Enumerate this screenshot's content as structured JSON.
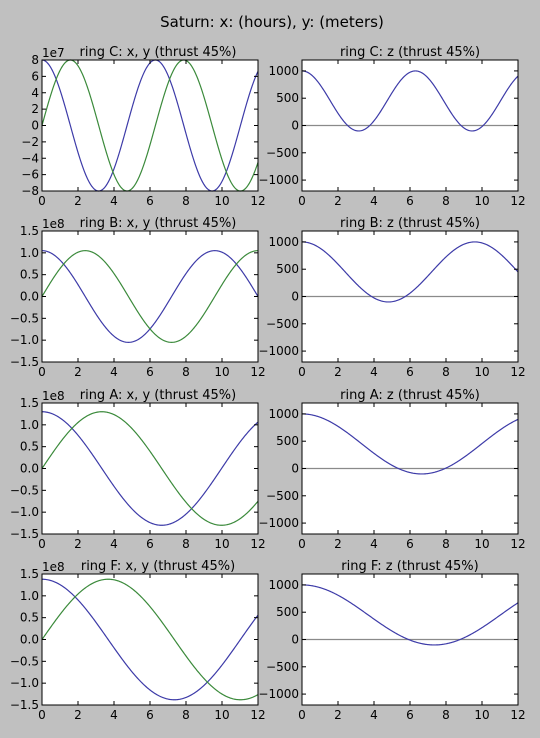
{
  "figure": {
    "title": "Saturn: x: (hours), y: (meters)"
  },
  "colors": {
    "x_series": "#3d3ba8",
    "y_series": "#3b8a3b",
    "zero_line": "#8a8a8a",
    "background": "#c0c0c0"
  },
  "chart_data": [
    {
      "type": "line",
      "title": "ring C: x, y (thrust 45%)",
      "xlim": [
        0,
        12
      ],
      "ylim": [
        -8,
        8
      ],
      "offset_label": "1e7",
      "x_ticks": [
        "0",
        "2",
        "4",
        "6",
        "8",
        "10",
        "12"
      ],
      "y_ticks": [
        "8",
        "6",
        "4",
        "2",
        "0",
        "−2",
        "−4",
        "−6",
        "−8"
      ],
      "y_tick_values": [
        8,
        6,
        4,
        2,
        0,
        -2,
        -4,
        -6,
        -8
      ],
      "series": [
        {
          "kind": "cos",
          "amplitude": 8.0,
          "period_hours": 6.3,
          "color": "#3d3ba8"
        },
        {
          "kind": "sin",
          "amplitude": 8.0,
          "period_hours": 6.3,
          "color": "#3b8a3b"
        }
      ]
    },
    {
      "type": "line",
      "title": "ring C: z (thrust 45%)",
      "xlim": [
        0,
        12
      ],
      "ylim": [
        -1200,
        1200
      ],
      "offset_label": "",
      "x_ticks": [
        "0",
        "2",
        "4",
        "6",
        "8",
        "10",
        "12"
      ],
      "y_ticks": [
        "1000",
        "500",
        "0",
        "−500",
        "−1000"
      ],
      "y_tick_values": [
        1000,
        500,
        0,
        -500,
        -1000
      ],
      "zero_line": true,
      "series": [
        {
          "kind": "zcurve",
          "base": 450,
          "amplitude": 550,
          "period_hours": 6.3,
          "color": "#3d3ba8"
        }
      ]
    },
    {
      "type": "line",
      "title": "ring B: x, y (thrust 45%)",
      "xlim": [
        0,
        12
      ],
      "ylim": [
        -1.5,
        1.5
      ],
      "offset_label": "1e8",
      "x_ticks": [
        "0",
        "2",
        "4",
        "6",
        "8",
        "10",
        "12"
      ],
      "y_ticks": [
        "1.5",
        "1.0",
        "0.5",
        "0.0",
        "−0.5",
        "−1.0",
        "−1.5"
      ],
      "y_tick_values": [
        1.5,
        1.0,
        0.5,
        0.0,
        -0.5,
        -1.0,
        -1.5
      ],
      "series": [
        {
          "kind": "cos",
          "amplitude": 1.05,
          "period_hours": 9.6,
          "color": "#3d3ba8"
        },
        {
          "kind": "sin",
          "amplitude": 1.05,
          "period_hours": 9.6,
          "color": "#3b8a3b"
        }
      ]
    },
    {
      "type": "line",
      "title": "ring B: z (thrust 45%)",
      "xlim": [
        0,
        12
      ],
      "ylim": [
        -1200,
        1200
      ],
      "offset_label": "",
      "x_ticks": [
        "0",
        "2",
        "4",
        "6",
        "8",
        "10",
        "12"
      ],
      "y_ticks": [
        "1000",
        "500",
        "0",
        "−500",
        "−1000"
      ],
      "y_tick_values": [
        1000,
        500,
        0,
        -500,
        -1000
      ],
      "zero_line": true,
      "series": [
        {
          "kind": "zcurve",
          "base": 450,
          "amplitude": 550,
          "period_hours": 9.6,
          "color": "#3d3ba8"
        }
      ]
    },
    {
      "type": "line",
      "title": "ring A: x, y (thrust 45%)",
      "xlim": [
        0,
        12
      ],
      "ylim": [
        -1.5,
        1.5
      ],
      "offset_label": "1e8",
      "x_ticks": [
        "0",
        "2",
        "4",
        "6",
        "8",
        "10",
        "12"
      ],
      "y_ticks": [
        "1.5",
        "1.0",
        "0.5",
        "0.0",
        "−0.5",
        "−1.0",
        "−1.5"
      ],
      "y_tick_values": [
        1.5,
        1.0,
        0.5,
        0.0,
        -0.5,
        -1.0,
        -1.5
      ],
      "series": [
        {
          "kind": "cos",
          "amplitude": 1.3,
          "period_hours": 13.3,
          "color": "#3d3ba8"
        },
        {
          "kind": "sin",
          "amplitude": 1.3,
          "period_hours": 13.3,
          "color": "#3b8a3b"
        }
      ]
    },
    {
      "type": "line",
      "title": "ring A: z (thrust 45%)",
      "xlim": [
        0,
        12
      ],
      "ylim": [
        -1200,
        1200
      ],
      "offset_label": "",
      "x_ticks": [
        "0",
        "2",
        "4",
        "6",
        "8",
        "10",
        "12"
      ],
      "y_ticks": [
        "1000",
        "500",
        "0",
        "−500",
        "−1000"
      ],
      "y_tick_values": [
        1000,
        500,
        0,
        -500,
        -1000
      ],
      "zero_line": true,
      "series": [
        {
          "kind": "zcurve",
          "base": 450,
          "amplitude": 550,
          "period_hours": 13.3,
          "color": "#3d3ba8"
        }
      ]
    },
    {
      "type": "line",
      "title": "ring F: x, y (thrust 45%)",
      "xlim": [
        0,
        12
      ],
      "ylim": [
        -1.5,
        1.5
      ],
      "offset_label": "1e8",
      "x_ticks": [
        "0",
        "2",
        "4",
        "6",
        "8",
        "10",
        "12"
      ],
      "y_ticks": [
        "1.5",
        "1.0",
        "0.5",
        "0.0",
        "−0.5",
        "−1.0",
        "−1.5"
      ],
      "y_tick_values": [
        1.5,
        1.0,
        0.5,
        0.0,
        -0.5,
        -1.0,
        -1.5
      ],
      "series": [
        {
          "kind": "cos",
          "amplitude": 1.38,
          "period_hours": 14.7,
          "color": "#3d3ba8"
        },
        {
          "kind": "sin",
          "amplitude": 1.38,
          "period_hours": 14.7,
          "color": "#3b8a3b"
        }
      ]
    },
    {
      "type": "line",
      "title": "ring F: z (thrust 45%)",
      "xlim": [
        0,
        12
      ],
      "ylim": [
        -1200,
        1200
      ],
      "offset_label": "",
      "x_ticks": [
        "0",
        "2",
        "4",
        "6",
        "8",
        "10",
        "12"
      ],
      "y_ticks": [
        "1000",
        "500",
        "0",
        "−500",
        "−1000"
      ],
      "y_tick_values": [
        1000,
        500,
        0,
        -500,
        -1000
      ],
      "zero_line": true,
      "series": [
        {
          "kind": "zcurve",
          "base": 450,
          "amplitude": 550,
          "period_hours": 14.7,
          "color": "#3d3ba8"
        }
      ]
    }
  ]
}
